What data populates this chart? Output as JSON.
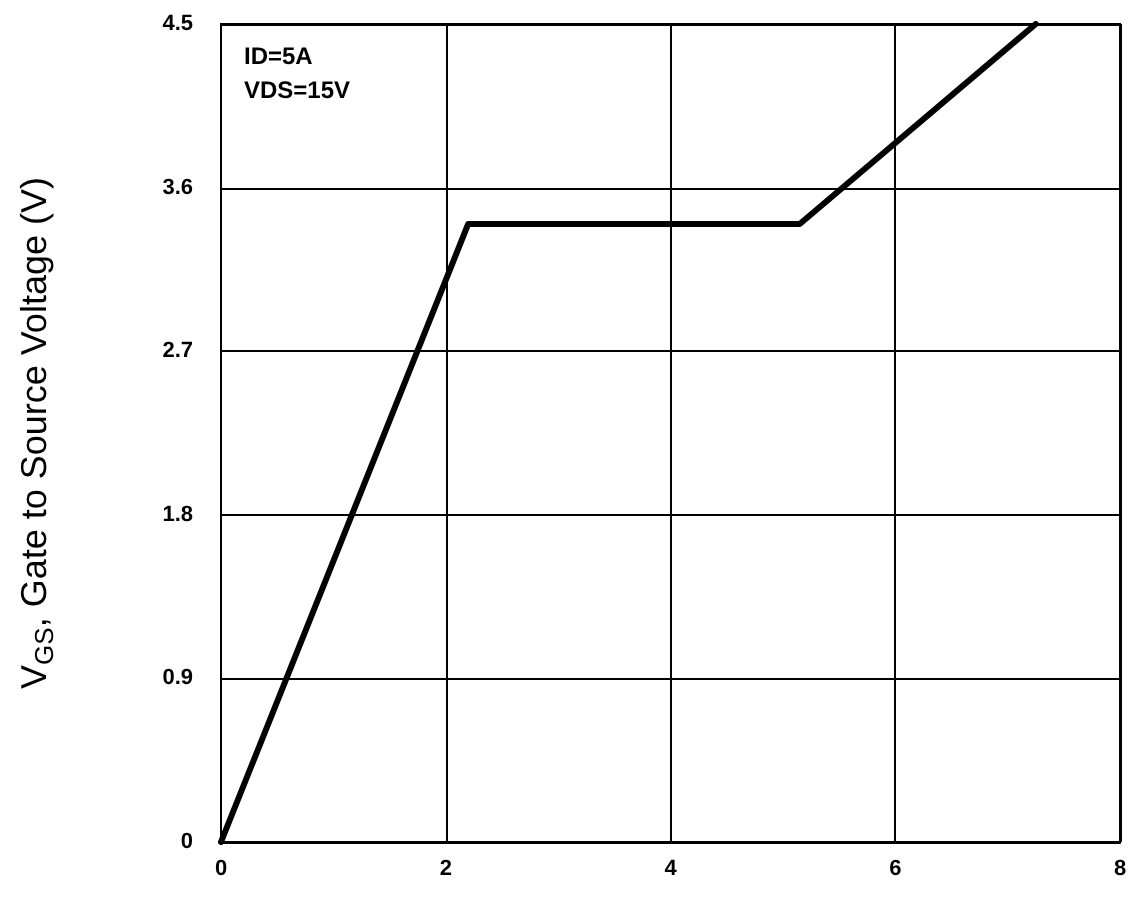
{
  "chart_data": {
    "type": "line",
    "ylabel": "V$_{GS}$, Gate to Source Voltage (V)",
    "annotations": [
      "ID=5A",
      "VDS=15V"
    ],
    "x": [
      0,
      2.2,
      5.15,
      7.25
    ],
    "series": [
      {
        "color": "#000000",
        "values": [
          0,
          3.4,
          3.4,
          4.5
        ]
      }
    ],
    "xlim": [
      0,
      8
    ],
    "xticks": [
      0,
      2,
      4,
      6,
      8
    ],
    "ylim": [
      0,
      4.5
    ],
    "yticks": [
      0,
      0.9,
      1.8,
      2.7,
      3.6,
      4.5
    ],
    "grid": true,
    "marker": "none",
    "line_style": "solid"
  }
}
